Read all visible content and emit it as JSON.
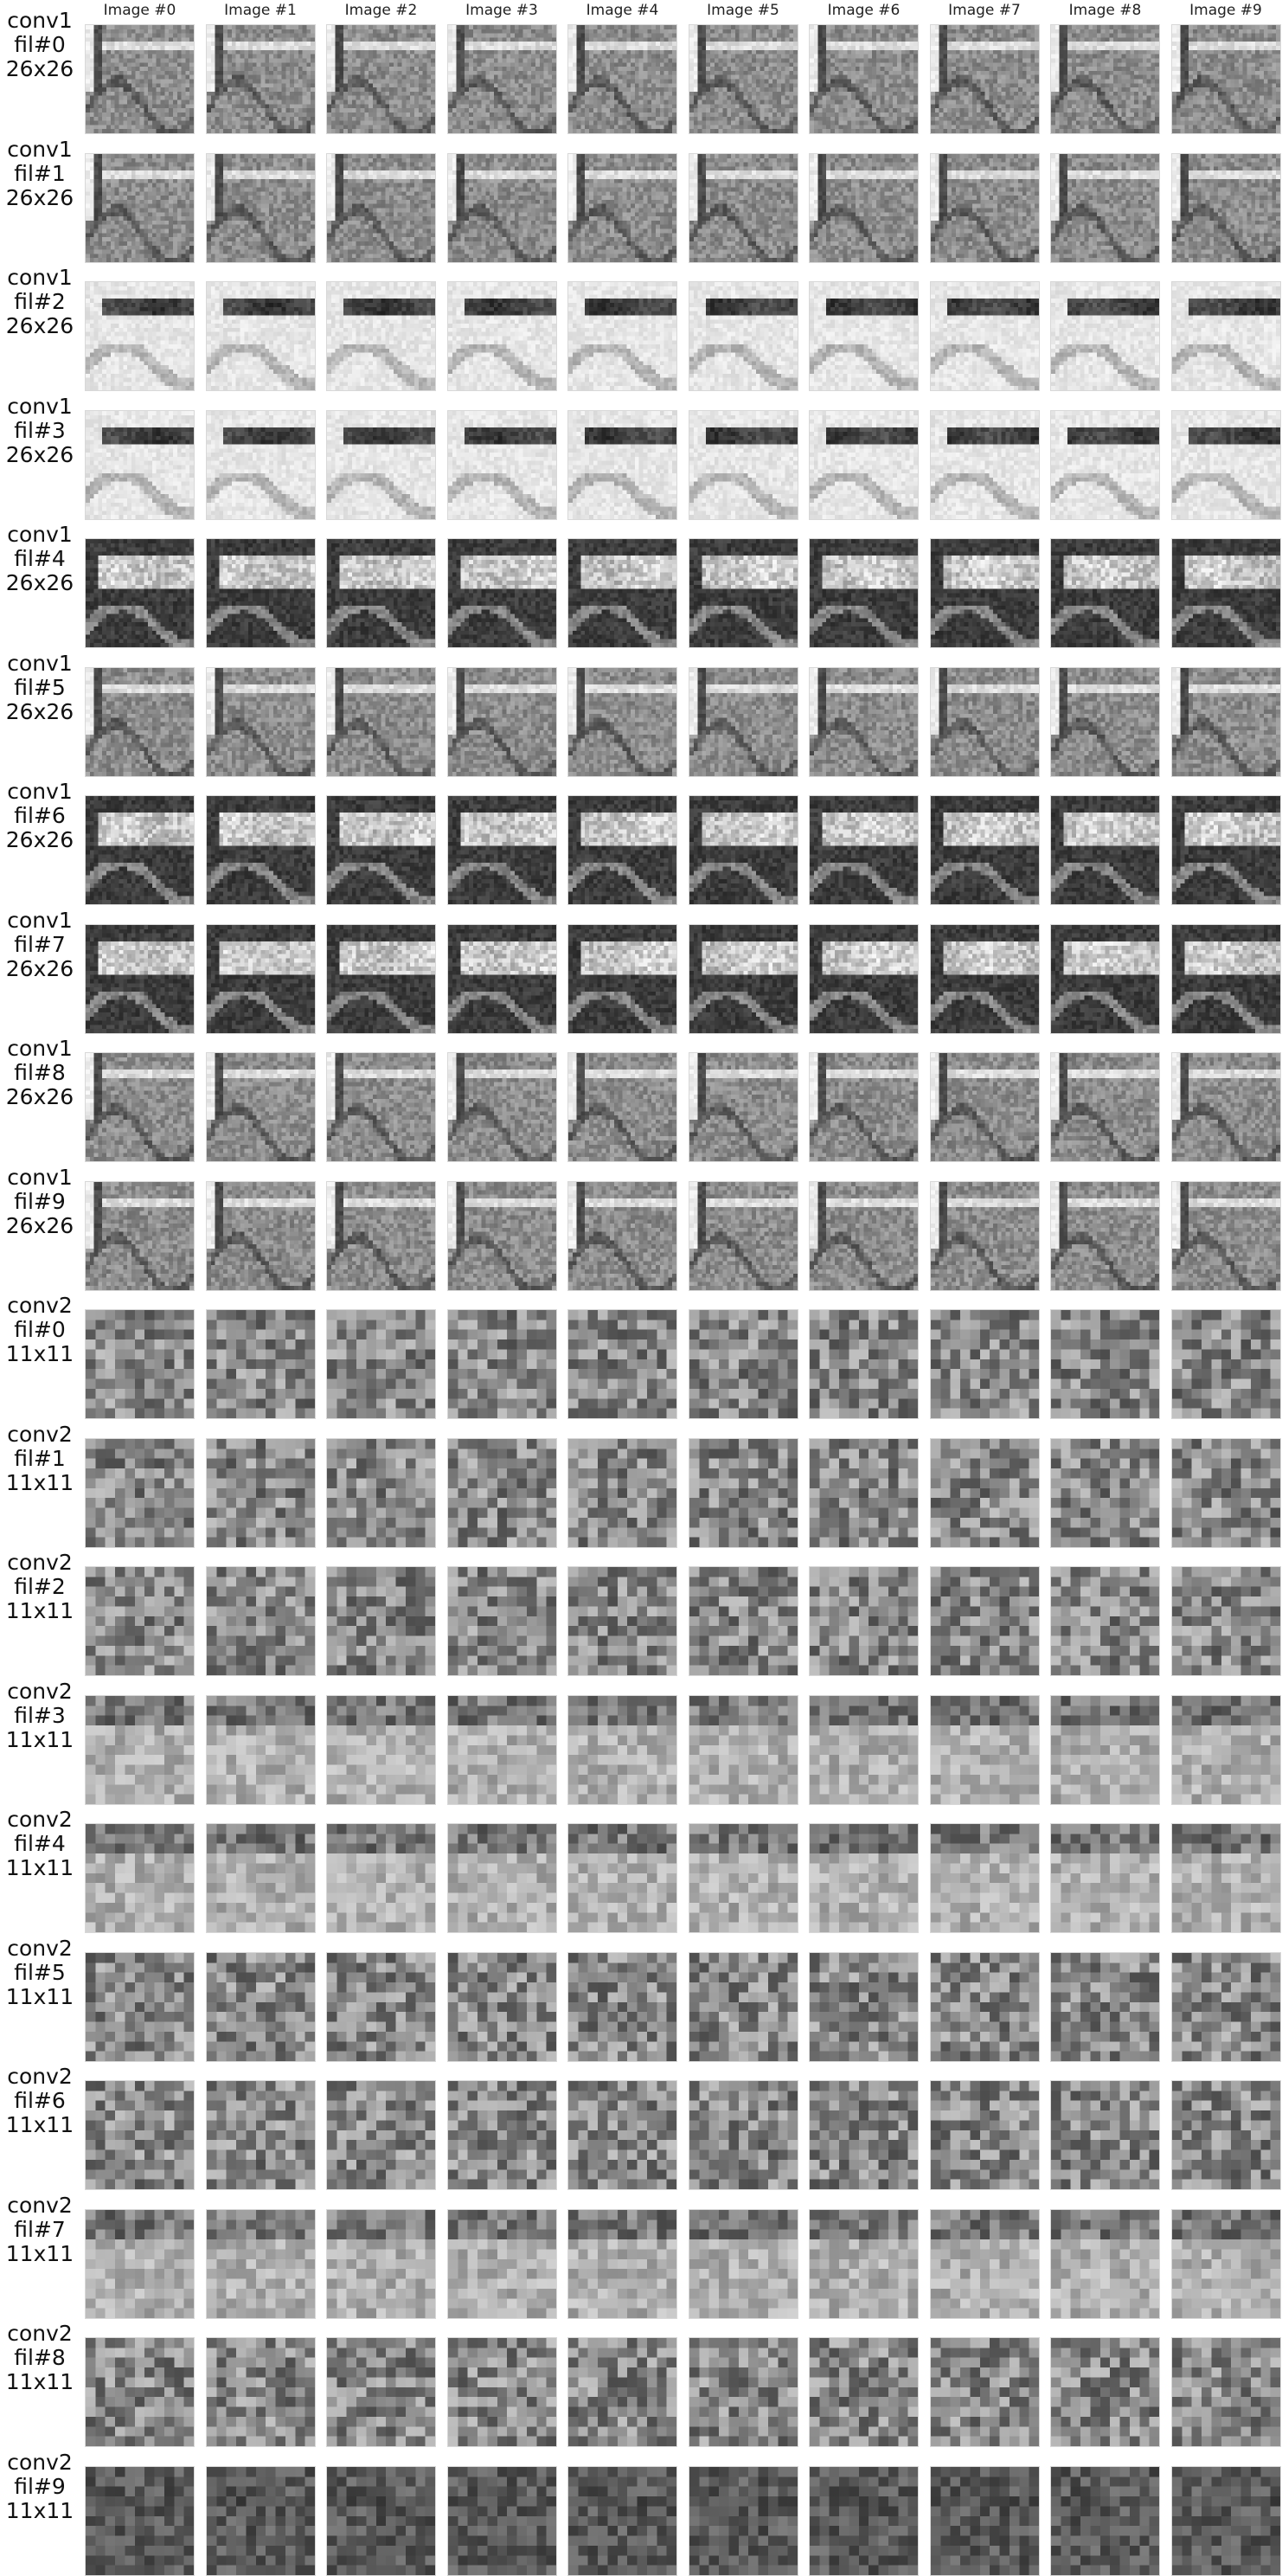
{
  "columns": [
    "Image #0",
    "Image #1",
    "Image #2",
    "Image #3",
    "Image #4",
    "Image #5",
    "Image #6",
    "Image #7",
    "Image #8",
    "Image #9"
  ],
  "rows": [
    {
      "layer": "conv1",
      "filter": "fil#0",
      "size": "26x26",
      "res": 26,
      "style": "edge"
    },
    {
      "layer": "conv1",
      "filter": "fil#1",
      "size": "26x26",
      "res": 26,
      "style": "edge"
    },
    {
      "layer": "conv1",
      "filter": "fil#2",
      "size": "26x26",
      "res": 26,
      "style": "light"
    },
    {
      "layer": "conv1",
      "filter": "fil#3",
      "size": "26x26",
      "res": 26,
      "style": "light"
    },
    {
      "layer": "conv1",
      "filter": "fil#4",
      "size": "26x26",
      "res": 26,
      "style": "dark"
    },
    {
      "layer": "conv1",
      "filter": "fil#5",
      "size": "26x26",
      "res": 26,
      "style": "edge"
    },
    {
      "layer": "conv1",
      "filter": "fil#6",
      "size": "26x26",
      "res": 26,
      "style": "dark"
    },
    {
      "layer": "conv1",
      "filter": "fil#7",
      "size": "26x26",
      "res": 26,
      "style": "dark"
    },
    {
      "layer": "conv1",
      "filter": "fil#8",
      "size": "26x26",
      "res": 26,
      "style": "edge"
    },
    {
      "layer": "conv1",
      "filter": "fil#9",
      "size": "26x26",
      "res": 26,
      "style": "edge"
    },
    {
      "layer": "conv2",
      "filter": "fil#0",
      "size": "11x11",
      "res": 11,
      "style": "mid"
    },
    {
      "layer": "conv2",
      "filter": "fil#1",
      "size": "11x11",
      "res": 11,
      "style": "mid"
    },
    {
      "layer": "conv2",
      "filter": "fil#2",
      "size": "11x11",
      "res": 11,
      "style": "mid"
    },
    {
      "layer": "conv2",
      "filter": "fil#3",
      "size": "11x11",
      "res": 11,
      "style": "lightmid"
    },
    {
      "layer": "conv2",
      "filter": "fil#4",
      "size": "11x11",
      "res": 11,
      "style": "lightmid"
    },
    {
      "layer": "conv2",
      "filter": "fil#5",
      "size": "11x11",
      "res": 11,
      "style": "mid"
    },
    {
      "layer": "conv2",
      "filter": "fil#6",
      "size": "11x11",
      "res": 11,
      "style": "mid"
    },
    {
      "layer": "conv2",
      "filter": "fil#7",
      "size": "11x11",
      "res": 11,
      "style": "lightmid"
    },
    {
      "layer": "conv2",
      "filter": "fil#8",
      "size": "11x11",
      "res": 11,
      "style": "mid"
    },
    {
      "layer": "conv2",
      "filter": "fil#9",
      "size": "11x11",
      "res": 11,
      "style": "darkmid"
    }
  ]
}
